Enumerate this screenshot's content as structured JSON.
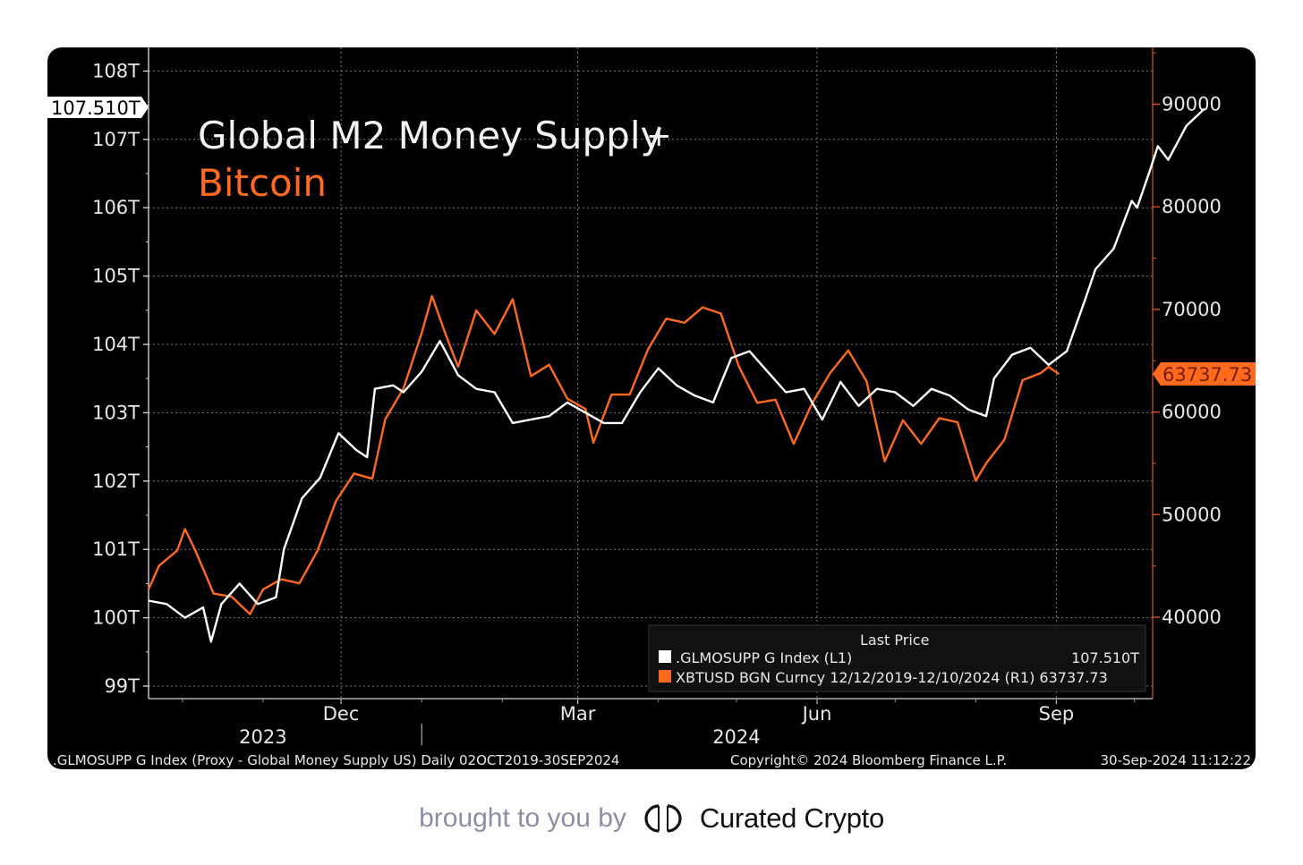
{
  "chart_data": {
    "type": "line",
    "title_line1": "Global M2 Money Supply",
    "title_plus": "+",
    "title_line2": "Bitcoin",
    "colors": {
      "m2": "#ffffff",
      "btc": "#ff6a1f",
      "background": "#000000",
      "grid": "#7a7a7a"
    },
    "left_axis": {
      "ticks": [
        "99T",
        "100T",
        "101T",
        "102T",
        "103T",
        "104T",
        "105T",
        "106T",
        "107T",
        "108T"
      ],
      "ylim": [
        99,
        108
      ]
    },
    "right_axis": {
      "ticks": [
        "40000",
        "50000",
        "60000",
        "70000",
        "80000",
        "90000"
      ],
      "ylim": [
        30000,
        95000
      ]
    },
    "x_axis": {
      "month_labels": [
        {
          "label": "Dec",
          "date": "2023-12-01"
        },
        {
          "label": "Mar",
          "date": "2024-03-01"
        },
        {
          "label": "Jun",
          "date": "2024-06-01"
        },
        {
          "label": "Sep",
          "date": "2024-09-01"
        }
      ],
      "year_labels": [
        {
          "label": "2023",
          "date": "2023-11-01"
        },
        {
          "label": "2024",
          "date": "2024-05-01"
        }
      ],
      "start": "2023-09-18",
      "end": "2024-10-08"
    },
    "last_value_tags": {
      "m2": "107.510T",
      "btc": "63737.73"
    },
    "legend": {
      "header": "Last Price",
      "entries": [
        {
          "label": ".GLMOSUPP G Index  (L1)",
          "value": "107.510T"
        },
        {
          "label": "XBTUSD BGN Curncy 12/12/2019-12/10/2024   (R1) 63737.73",
          "value": ""
        }
      ]
    },
    "footer": {
      "left": ".GLMOSUPP G Index (Proxy - Global Money Supply US)  Daily 02OCT2019-30SEP2024",
      "center": "Copyright© 2024 Bloomberg Finance L.P.",
      "right": "30-Sep-2024 11:12:22"
    },
    "series": [
      {
        "name": ".GLMOSUPP G Index",
        "axis": "left",
        "points": [
          [
            "2023-09-18",
            100.25
          ],
          [
            "2023-09-25",
            100.2
          ],
          [
            "2023-10-02",
            100.0
          ],
          [
            "2023-10-09",
            100.15
          ],
          [
            "2023-10-12",
            99.65
          ],
          [
            "2023-10-16",
            100.2
          ],
          [
            "2023-10-23",
            100.5
          ],
          [
            "2023-10-30",
            100.2
          ],
          [
            "2023-11-06",
            100.3
          ],
          [
            "2023-11-09",
            101.0
          ],
          [
            "2023-11-16",
            101.75
          ],
          [
            "2023-11-23",
            102.05
          ],
          [
            "2023-11-30",
            102.7
          ],
          [
            "2023-12-07",
            102.45
          ],
          [
            "2023-12-11",
            102.35
          ],
          [
            "2023-12-14",
            103.35
          ],
          [
            "2023-12-21",
            103.4
          ],
          [
            "2023-12-25",
            103.3
          ],
          [
            "2024-01-01",
            103.6
          ],
          [
            "2024-01-08",
            104.05
          ],
          [
            "2024-01-15",
            103.55
          ],
          [
            "2024-01-22",
            103.35
          ],
          [
            "2024-01-29",
            103.3
          ],
          [
            "2024-02-05",
            102.85
          ],
          [
            "2024-02-12",
            102.9
          ],
          [
            "2024-02-19",
            102.95
          ],
          [
            "2024-02-26",
            103.15
          ],
          [
            "2024-03-04",
            103.0
          ],
          [
            "2024-03-11",
            102.85
          ],
          [
            "2024-03-18",
            102.85
          ],
          [
            "2024-03-25",
            103.3
          ],
          [
            "2024-04-01",
            103.65
          ],
          [
            "2024-04-08",
            103.4
          ],
          [
            "2024-04-15",
            103.25
          ],
          [
            "2024-04-22",
            103.15
          ],
          [
            "2024-04-29",
            103.8
          ],
          [
            "2024-05-06",
            103.9
          ],
          [
            "2024-05-13",
            103.6
          ],
          [
            "2024-05-20",
            103.3
          ],
          [
            "2024-05-27",
            103.35
          ],
          [
            "2024-06-03",
            102.9
          ],
          [
            "2024-06-10",
            103.45
          ],
          [
            "2024-06-17",
            103.1
          ],
          [
            "2024-06-24",
            103.35
          ],
          [
            "2024-07-01",
            103.3
          ],
          [
            "2024-07-08",
            103.1
          ],
          [
            "2024-07-15",
            103.35
          ],
          [
            "2024-07-22",
            103.25
          ],
          [
            "2024-07-29",
            103.05
          ],
          [
            "2024-08-05",
            102.95
          ],
          [
            "2024-08-08",
            103.5
          ],
          [
            "2024-08-15",
            103.85
          ],
          [
            "2024-08-22",
            103.95
          ],
          [
            "2024-08-29",
            103.7
          ],
          [
            "2024-09-05",
            103.9
          ],
          [
            "2024-09-12",
            104.65
          ],
          [
            "2024-09-16",
            105.1
          ],
          [
            "2024-09-23",
            105.4
          ],
          [
            "2024-09-30",
            106.1
          ],
          [
            "2024-10-02",
            106.0
          ],
          [
            "2024-10-07",
            106.55
          ],
          [
            "2024-10-10",
            106.9
          ],
          [
            "2024-10-14",
            106.7
          ],
          [
            "2024-10-21",
            107.2
          ],
          [
            "2024-10-28",
            107.45
          ]
        ]
      },
      {
        "name": "XBTUSD BGN Curncy",
        "axis": "right",
        "points": [
          [
            "2023-09-18",
            42700
          ],
          [
            "2023-09-22",
            45000
          ],
          [
            "2023-09-29",
            46500
          ],
          [
            "2023-10-02",
            48600
          ],
          [
            "2023-10-06",
            46500
          ],
          [
            "2023-10-13",
            42300
          ],
          [
            "2023-10-20",
            42000
          ],
          [
            "2023-10-27",
            40300
          ],
          [
            "2023-11-01",
            42700
          ],
          [
            "2023-11-08",
            43700
          ],
          [
            "2023-11-15",
            43300
          ],
          [
            "2023-11-22",
            46500
          ],
          [
            "2023-11-29",
            51300
          ],
          [
            "2023-12-06",
            54000
          ],
          [
            "2023-12-13",
            53500
          ],
          [
            "2023-12-18",
            59300
          ],
          [
            "2023-12-25",
            62300
          ],
          [
            "2024-01-01",
            67700
          ],
          [
            "2024-01-05",
            71300
          ],
          [
            "2024-01-10",
            67700
          ],
          [
            "2024-01-15",
            64400
          ],
          [
            "2024-01-22",
            69900
          ],
          [
            "2024-01-29",
            67600
          ],
          [
            "2024-02-05",
            71000
          ],
          [
            "2024-02-12",
            63500
          ],
          [
            "2024-02-19",
            64600
          ],
          [
            "2024-02-26",
            61300
          ],
          [
            "2024-03-04",
            60300
          ],
          [
            "2024-03-07",
            57000
          ],
          [
            "2024-03-14",
            61700
          ],
          [
            "2024-03-21",
            61700
          ],
          [
            "2024-03-28",
            66100
          ],
          [
            "2024-04-04",
            69100
          ],
          [
            "2024-04-11",
            68700
          ],
          [
            "2024-04-18",
            70200
          ],
          [
            "2024-04-25",
            69600
          ],
          [
            "2024-05-02",
            64400
          ],
          [
            "2024-05-09",
            60900
          ],
          [
            "2024-05-16",
            61200
          ],
          [
            "2024-05-23",
            56900
          ],
          [
            "2024-05-30",
            60800
          ],
          [
            "2024-06-06",
            63800
          ],
          [
            "2024-06-13",
            66000
          ],
          [
            "2024-06-20",
            63000
          ],
          [
            "2024-06-27",
            55200
          ],
          [
            "2024-07-04",
            59200
          ],
          [
            "2024-07-11",
            56900
          ],
          [
            "2024-07-18",
            59400
          ],
          [
            "2024-07-25",
            59000
          ],
          [
            "2024-08-01",
            53300
          ],
          [
            "2024-08-05",
            55000
          ],
          [
            "2024-08-12",
            57300
          ],
          [
            "2024-08-19",
            63100
          ],
          [
            "2024-08-26",
            63800
          ],
          [
            "2024-08-29",
            64400
          ],
          [
            "2024-09-02",
            63700
          ]
        ]
      }
    ]
  },
  "branding": {
    "brought_by": "brought to you by",
    "brand": "Curated Crypto"
  }
}
